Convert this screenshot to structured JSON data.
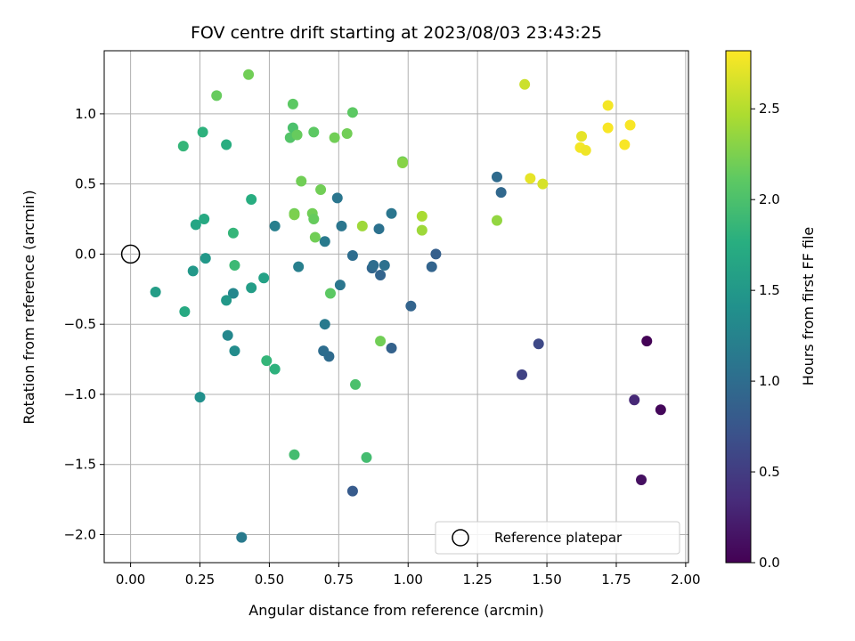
{
  "chart_data": {
    "type": "scatter",
    "title": "FOV centre drift starting at 2023/08/03 23:43:25",
    "xlabel": "Angular distance from reference (arcmin)",
    "ylabel": "Rotation from reference (arcmin)",
    "xlim": [
      -0.095,
      2.01
    ],
    "ylim": [
      -2.2,
      1.45
    ],
    "xticks": [
      0.0,
      0.25,
      0.5,
      0.75,
      1.0,
      1.25,
      1.5,
      1.75,
      2.0
    ],
    "xtick_labels": [
      "0.00",
      "0.25",
      "0.50",
      "0.75",
      "1.00",
      "1.25",
      "1.50",
      "1.75",
      "2.00"
    ],
    "yticks": [
      -2.0,
      -1.5,
      -1.0,
      -0.5,
      0.0,
      0.5,
      1.0
    ],
    "ytick_labels": [
      "−2.0",
      "−1.5",
      "−1.0",
      "−0.5",
      "0.0",
      "0.5",
      "1.0"
    ],
    "grid": true,
    "legend": {
      "placement": "lower-right",
      "entries": [
        "Reference platepar"
      ]
    },
    "colorbar": {
      "label": "Hours from first FF file",
      "colormap": "viridis",
      "range": [
        0.0,
        2.82
      ],
      "ticks": [
        0.0,
        0.5,
        1.0,
        1.5,
        2.0,
        2.5
      ],
      "tick_labels": [
        "0.0",
        "0.5",
        "1.0",
        "1.5",
        "2.0",
        "2.5"
      ]
    },
    "reference_point": {
      "x": 0.0,
      "y": 0.0,
      "label": "Reference platepar"
    },
    "points": [
      {
        "x": 1.86,
        "y": -0.62,
        "c": 0.02
      },
      {
        "x": 1.91,
        "y": -1.11,
        "c": 0.05
      },
      {
        "x": 1.84,
        "y": -1.61,
        "c": 0.12
      },
      {
        "x": 1.815,
        "y": -1.04,
        "c": 0.32
      },
      {
        "x": 1.41,
        "y": -0.86,
        "c": 0.55
      },
      {
        "x": 1.47,
        "y": -0.64,
        "c": 0.62
      },
      {
        "x": 0.8,
        "y": -1.69,
        "c": 0.8
      },
      {
        "x": 1.1,
        "y": 0.0,
        "c": 0.85
      },
      {
        "x": 1.085,
        "y": -0.09,
        "c": 0.9
      },
      {
        "x": 0.9,
        "y": -0.15,
        "c": 0.9
      },
      {
        "x": 0.87,
        "y": -0.1,
        "c": 0.92
      },
      {
        "x": 0.94,
        "y": -0.67,
        "c": 0.88
      },
      {
        "x": 1.01,
        "y": -0.37,
        "c": 0.9
      },
      {
        "x": 1.335,
        "y": 0.44,
        "c": 0.95
      },
      {
        "x": 1.32,
        "y": 0.55,
        "c": 0.98
      },
      {
        "x": 0.715,
        "y": -0.73,
        "c": 0.98
      },
      {
        "x": 0.695,
        "y": -0.69,
        "c": 1.0
      },
      {
        "x": 0.8,
        "y": -0.01,
        "c": 1.0
      },
      {
        "x": 0.875,
        "y": -0.08,
        "c": 1.0
      },
      {
        "x": 0.915,
        "y": -0.08,
        "c": 1.05
      },
      {
        "x": 0.895,
        "y": 0.18,
        "c": 1.05
      },
      {
        "x": 0.94,
        "y": 0.29,
        "c": 1.1
      },
      {
        "x": 0.76,
        "y": 0.2,
        "c": 1.1
      },
      {
        "x": 0.745,
        "y": 0.4,
        "c": 1.1
      },
      {
        "x": 0.755,
        "y": -0.22,
        "c": 1.1
      },
      {
        "x": 0.7,
        "y": 0.09,
        "c": 1.15
      },
      {
        "x": 0.7,
        "y": -0.5,
        "c": 1.15
      },
      {
        "x": 0.605,
        "y": -0.09,
        "c": 1.2
      },
      {
        "x": 0.52,
        "y": 0.2,
        "c": 1.2
      },
      {
        "x": 0.4,
        "y": -2.02,
        "c": 1.15
      },
      {
        "x": 0.37,
        "y": -0.28,
        "c": 1.3
      },
      {
        "x": 0.35,
        "y": -0.58,
        "c": 1.3
      },
      {
        "x": 0.375,
        "y": -0.69,
        "c": 1.35
      },
      {
        "x": 0.345,
        "y": -0.33,
        "c": 1.5
      },
      {
        "x": 0.25,
        "y": -1.02,
        "c": 1.4
      },
      {
        "x": 0.435,
        "y": -0.24,
        "c": 1.55
      },
      {
        "x": 0.48,
        "y": -0.17,
        "c": 1.6
      },
      {
        "x": 0.09,
        "y": -0.27,
        "c": 1.55
      },
      {
        "x": 0.27,
        "y": -0.03,
        "c": 1.5
      },
      {
        "x": 0.225,
        "y": -0.12,
        "c": 1.5
      },
      {
        "x": 0.195,
        "y": -0.41,
        "c": 1.7
      },
      {
        "x": 0.235,
        "y": 0.21,
        "c": 1.65
      },
      {
        "x": 0.265,
        "y": 0.25,
        "c": 1.7
      },
      {
        "x": 0.435,
        "y": 0.39,
        "c": 1.75
      },
      {
        "x": 0.345,
        "y": 0.78,
        "c": 1.75
      },
      {
        "x": 0.26,
        "y": 0.87,
        "c": 1.8
      },
      {
        "x": 0.19,
        "y": 0.77,
        "c": 1.85
      },
      {
        "x": 0.37,
        "y": 0.15,
        "c": 1.85
      },
      {
        "x": 0.375,
        "y": -0.08,
        "c": 1.9
      },
      {
        "x": 0.49,
        "y": -0.76,
        "c": 1.85
      },
      {
        "x": 0.52,
        "y": -0.82,
        "c": 1.8
      },
      {
        "x": 0.59,
        "y": -1.43,
        "c": 1.95
      },
      {
        "x": 0.85,
        "y": -1.45,
        "c": 1.95
      },
      {
        "x": 0.81,
        "y": -0.93,
        "c": 2.0
      },
      {
        "x": 0.72,
        "y": -0.28,
        "c": 2.1
      },
      {
        "x": 0.9,
        "y": -0.62,
        "c": 2.2
      },
      {
        "x": 0.31,
        "y": 1.13,
        "c": 2.15
      },
      {
        "x": 0.425,
        "y": 1.28,
        "c": 2.2
      },
      {
        "x": 0.585,
        "y": 1.07,
        "c": 2.1
      },
      {
        "x": 0.585,
        "y": 0.9,
        "c": 2.0
      },
      {
        "x": 0.575,
        "y": 0.83,
        "c": 2.05
      },
      {
        "x": 0.6,
        "y": 0.85,
        "c": 2.15
      },
      {
        "x": 0.66,
        "y": 0.87,
        "c": 2.1
      },
      {
        "x": 0.735,
        "y": 0.83,
        "c": 2.2
      },
      {
        "x": 0.78,
        "y": 0.86,
        "c": 2.2
      },
      {
        "x": 0.8,
        "y": 1.01,
        "c": 2.1
      },
      {
        "x": 0.615,
        "y": 0.52,
        "c": 2.2
      },
      {
        "x": 0.685,
        "y": 0.46,
        "c": 2.2
      },
      {
        "x": 0.59,
        "y": 0.29,
        "c": 2.2
      },
      {
        "x": 0.59,
        "y": 0.28,
        "c": 2.25
      },
      {
        "x": 0.655,
        "y": 0.29,
        "c": 2.2
      },
      {
        "x": 0.66,
        "y": 0.25,
        "c": 2.15
      },
      {
        "x": 0.665,
        "y": 0.12,
        "c": 2.2
      },
      {
        "x": 0.835,
        "y": 0.2,
        "c": 2.4
      },
      {
        "x": 0.98,
        "y": 0.66,
        "c": 2.2
      },
      {
        "x": 0.98,
        "y": 0.65,
        "c": 2.3
      },
      {
        "x": 1.05,
        "y": 0.27,
        "c": 2.45
      },
      {
        "x": 1.05,
        "y": 0.17,
        "c": 2.4
      },
      {
        "x": 1.32,
        "y": 0.24,
        "c": 2.35
      },
      {
        "x": 1.42,
        "y": 1.21,
        "c": 2.6
      },
      {
        "x": 1.44,
        "y": 0.54,
        "c": 2.72
      },
      {
        "x": 1.485,
        "y": 0.5,
        "c": 2.65
      },
      {
        "x": 1.62,
        "y": 0.76,
        "c": 2.78
      },
      {
        "x": 1.625,
        "y": 0.84,
        "c": 2.72
      },
      {
        "x": 1.64,
        "y": 0.74,
        "c": 2.76
      },
      {
        "x": 1.72,
        "y": 1.06,
        "c": 2.78
      },
      {
        "x": 1.72,
        "y": 0.9,
        "c": 2.8
      },
      {
        "x": 1.78,
        "y": 0.78,
        "c": 2.8
      },
      {
        "x": 1.8,
        "y": 0.92,
        "c": 2.8
      }
    ]
  }
}
